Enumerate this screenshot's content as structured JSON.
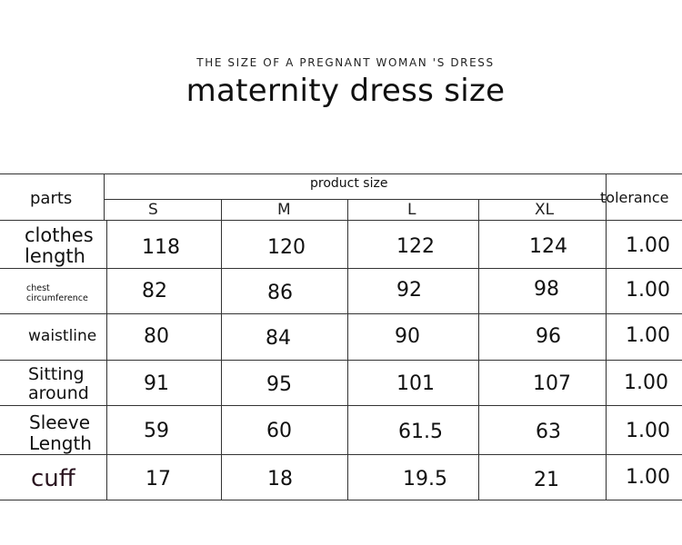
{
  "subtitle": "THE SIZE OF A PREGNANT WOMAN  'S DRESS",
  "title": "maternity dress size",
  "table": {
    "parts_header": "parts",
    "product_size_header": "product size",
    "tolerance_header": "tolerance",
    "sizes": [
      "S",
      "M",
      "L",
      "XL"
    ],
    "rows": [
      {
        "label_line1": "clothes",
        "label_line2": "length",
        "values": [
          "118",
          "120",
          "122",
          "124"
        ],
        "tolerance": "1.00"
      },
      {
        "label_line1": "chest",
        "label_line2": "circumference",
        "values": [
          "82",
          "86",
          "92",
          "98"
        ],
        "tolerance": "1.00"
      },
      {
        "label_line1": "waistline",
        "label_line2": "",
        "values": [
          "80",
          "84",
          "90",
          "96"
        ],
        "tolerance": "1.00"
      },
      {
        "label_line1": "Sitting",
        "label_line2": "around",
        "values": [
          "91",
          "95",
          "101",
          "107"
        ],
        "tolerance": "1.00"
      },
      {
        "label_line1": "Sleeve",
        "label_line2": "Length",
        "values": [
          "59",
          "60",
          "61.5",
          "63"
        ],
        "tolerance": "1.00"
      },
      {
        "label_line1": "cuff",
        "label_line2": "",
        "values": [
          "17",
          "18",
          "19.5",
          "21"
        ],
        "tolerance": "1.00"
      }
    ]
  }
}
